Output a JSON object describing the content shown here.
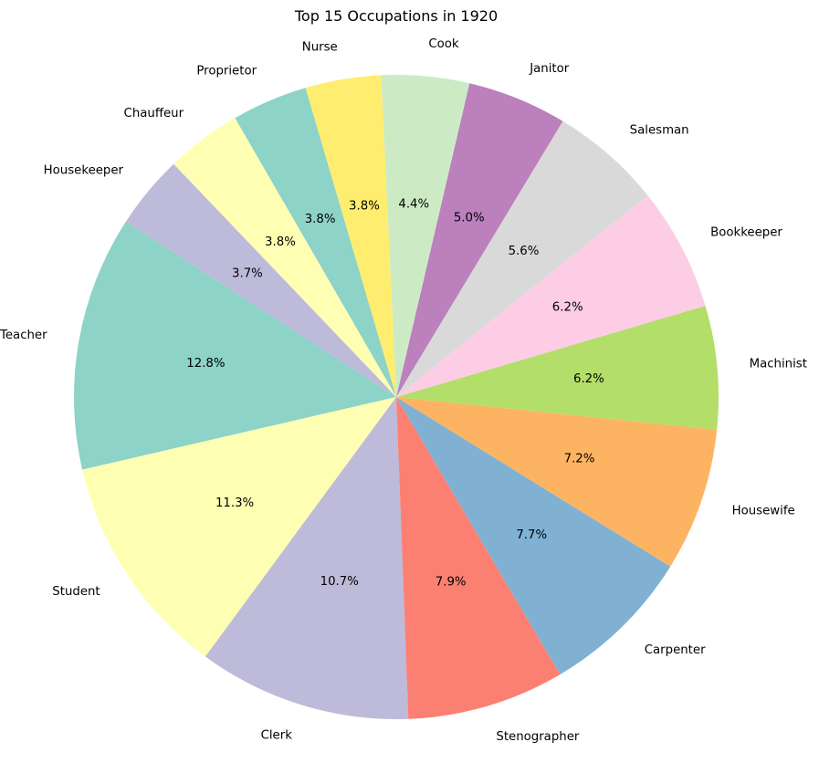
{
  "chart_data": {
    "type": "pie",
    "title": "Top 15 Occupations in 1920",
    "start_angle_deg": 147,
    "direction": "counterclockwise",
    "slices": [
      {
        "label": "Teacher",
        "value": 12.8,
        "pct_label": "12.8%",
        "color": "#8dd3c7"
      },
      {
        "label": "Student",
        "value": 11.3,
        "pct_label": "11.3%",
        "color": "#ffffb3"
      },
      {
        "label": "Clerk",
        "value": 10.7,
        "pct_label": "10.7%",
        "color": "#bebada"
      },
      {
        "label": "Stenographer",
        "value": 7.9,
        "pct_label": "7.9%",
        "color": "#fb8072"
      },
      {
        "label": "Carpenter",
        "value": 7.7,
        "pct_label": "7.7%",
        "color": "#80b1d3"
      },
      {
        "label": "Housewife",
        "value": 7.2,
        "pct_label": "7.2%",
        "color": "#fdb462"
      },
      {
        "label": "Machinist",
        "value": 6.2,
        "pct_label": "6.2%",
        "color": "#b3de69"
      },
      {
        "label": "Bookkeeper",
        "value": 6.2,
        "pct_label": "6.2%",
        "color": "#fccde5"
      },
      {
        "label": "Salesman",
        "value": 5.6,
        "pct_label": "5.6%",
        "color": "#d9d9d9"
      },
      {
        "label": "Janitor",
        "value": 5.0,
        "pct_label": "5.0%",
        "color": "#bc80bd"
      },
      {
        "label": "Cook",
        "value": 4.4,
        "pct_label": "4.4%",
        "color": "#ccebc5"
      },
      {
        "label": "Nurse",
        "value": 3.8,
        "pct_label": "3.8%",
        "color": "#ffed6f"
      },
      {
        "label": "Proprietor",
        "value": 3.8,
        "pct_label": "3.8%",
        "color": "#8dd3c7"
      },
      {
        "label": "Chauffeur",
        "value": 3.8,
        "pct_label": "3.8%",
        "color": "#ffffb3"
      },
      {
        "label": "Housekeeper",
        "value": 3.7,
        "pct_label": "3.7%",
        "color": "#bebada"
      }
    ]
  }
}
